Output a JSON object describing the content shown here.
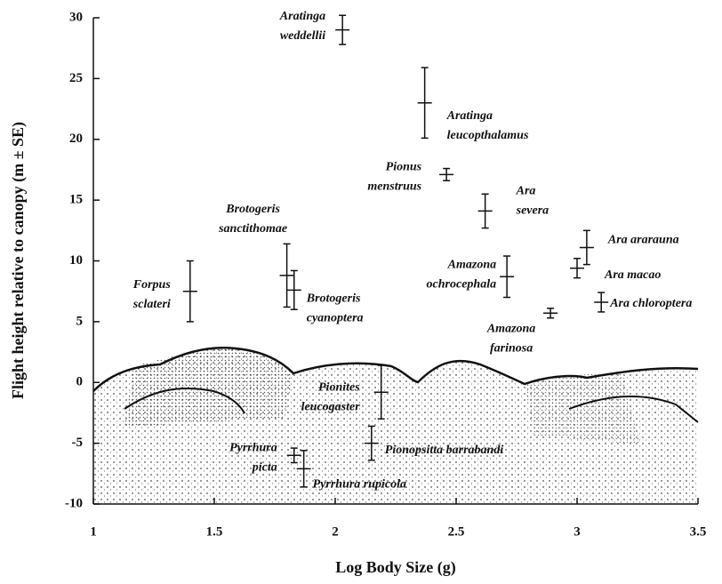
{
  "chart_data": {
    "type": "errorbar",
    "x_label": "Log Body Size (g)",
    "y_label": "Flight height relative to canopy (m ± SE)",
    "xlim": [
      1,
      3.5
    ],
    "xticks": [
      1,
      1.5,
      2,
      2.5,
      3,
      3.5
    ],
    "ylim": [
      -10,
      30
    ],
    "yticks": [
      -10,
      -5,
      0,
      5,
      10,
      15,
      20,
      25,
      30
    ],
    "color": "#111111",
    "points": [
      {
        "label": [
          "Aratinga",
          "weddellii"
        ],
        "x": 2.03,
        "y": 29,
        "err": 1.2
      },
      {
        "label": [
          "Aratinga",
          "leucopthalamus"
        ],
        "x": 2.37,
        "y": 23,
        "err": 2.9
      },
      {
        "label": [
          "Pionus",
          "menstruus"
        ],
        "x": 2.46,
        "y": 17.1,
        "err": 0.5
      },
      {
        "label": [
          "Ara",
          "severa"
        ],
        "x": 2.62,
        "y": 14.1,
        "err": 1.4
      },
      {
        "label": [
          "Ara ararauna"
        ],
        "x": 3.04,
        "y": 11.1,
        "err": 1.4
      },
      {
        "label": [
          "Ara macao"
        ],
        "x": 3.0,
        "y": 9.4,
        "err": 0.8
      },
      {
        "label": [
          "Ara chloroptera"
        ],
        "x": 3.1,
        "y": 6.6,
        "err": 0.8
      },
      {
        "label": [
          "Amazona",
          "ochrocephala"
        ],
        "x": 2.71,
        "y": 8.7,
        "err": 1.7
      },
      {
        "label": [
          "Amazona",
          "farinosa"
        ],
        "x": 2.89,
        "y": 5.7,
        "err": 0.4
      },
      {
        "label": [
          "Forpus",
          "sclateri"
        ],
        "x": 1.4,
        "y": 7.5,
        "err": 2.5
      },
      {
        "label": [
          "Brotogeris",
          "sanctithomae"
        ],
        "x": 1.8,
        "y": 8.8,
        "err": 2.6
      },
      {
        "label": [
          "Brotogeris",
          "cyanoptera"
        ],
        "x": 1.83,
        "y": 7.6,
        "err": 1.6
      },
      {
        "label": [
          "Pionites",
          "leucogaster"
        ],
        "x": 2.19,
        "y": -0.8,
        "err": 2.2
      },
      {
        "label": [
          "Pionopsitta barrabandi"
        ],
        "x": 2.15,
        "y": -5,
        "err": 1.4
      },
      {
        "label": [
          "Pyrrhura",
          "picta"
        ],
        "x": 1.83,
        "y": -6,
        "err": 0.6
      },
      {
        "label": [
          "Pyrrhura rupicola"
        ],
        "x": 1.87,
        "y": -7.1,
        "err": 1.5
      }
    ]
  }
}
